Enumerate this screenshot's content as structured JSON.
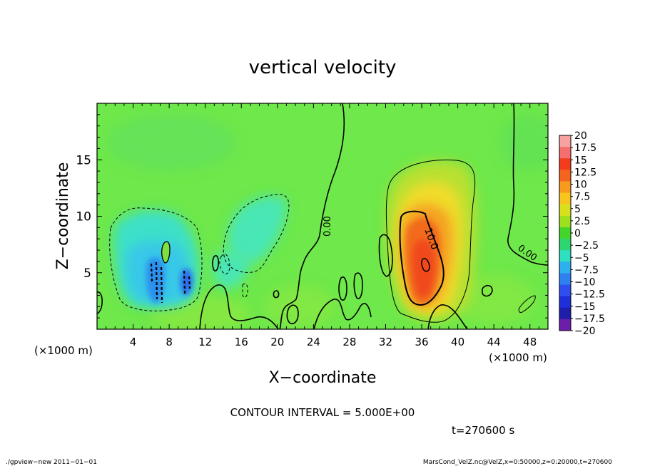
{
  "chart_data": {
    "type": "heatmap",
    "title": "vertical velocity",
    "xlabel": "X−coordinate",
    "ylabel": "Z−coordinate",
    "x_unit": "(×1000 m)",
    "y_unit": "(×1000 m)",
    "xlim": [
      0,
      50
    ],
    "ylim": [
      0,
      20
    ],
    "x_ticks": [
      4,
      8,
      12,
      16,
      20,
      24,
      28,
      32,
      36,
      40,
      44,
      48
    ],
    "y_ticks": [
      5,
      10,
      15
    ],
    "x_tick_labels": [
      "4",
      "8",
      "12",
      "16",
      "20",
      "24",
      "28",
      "32",
      "36",
      "40",
      "44",
      "48"
    ],
    "y_tick_labels": [
      "5",
      "10",
      "15"
    ],
    "colorbar": {
      "levels": [
        20,
        17.5,
        15,
        12.5,
        10,
        7.5,
        5,
        2.5,
        0,
        -2.5,
        -5,
        -7.5,
        -10,
        -12.5,
        -15,
        -17.5,
        -20
      ],
      "labels": [
        "20",
        "17.5",
        "15",
        "12.5",
        "10",
        "7.5",
        "5",
        "2.5",
        "0",
        "−2.5",
        "−5",
        "−7.5",
        "−10",
        "−12.5",
        "−15",
        "−17.5",
        "−20"
      ],
      "colors": [
        "#f7a1a1",
        "#f56e6e",
        "#f23c1c",
        "#f5641e",
        "#f79a1e",
        "#f7c51e",
        "#d8e01e",
        "#9de01e",
        "#42d62a",
        "#2ed672",
        "#2ee0c0",
        "#2eb0f0",
        "#2e82f0",
        "#2e4ef0",
        "#1e2ed8",
        "#1e1eaa",
        "#6a1eaa"
      ]
    },
    "contour_interval_text": "CONTOUR INTERVAL = 5.000E+00",
    "contour_labels": [
      "0.00",
      "10.0",
      "0.00"
    ],
    "time_text": "t=270600 s",
    "features": [
      {
        "kind": "updraft",
        "x_center": 35.5,
        "z_center": 7,
        "peak": 15
      },
      {
        "kind": "downdraft",
        "x_center": 7,
        "z_center": 4.5,
        "peak": -10
      },
      {
        "kind": "downdraft",
        "x_center": 17,
        "z_center": 9,
        "peak": -5
      }
    ]
  },
  "footer": {
    "left": "./gpview−new   2011−01−01",
    "right": "MarsCond_VelZ.nc@VelZ,x=0:50000,z=0:20000,t=270600"
  }
}
